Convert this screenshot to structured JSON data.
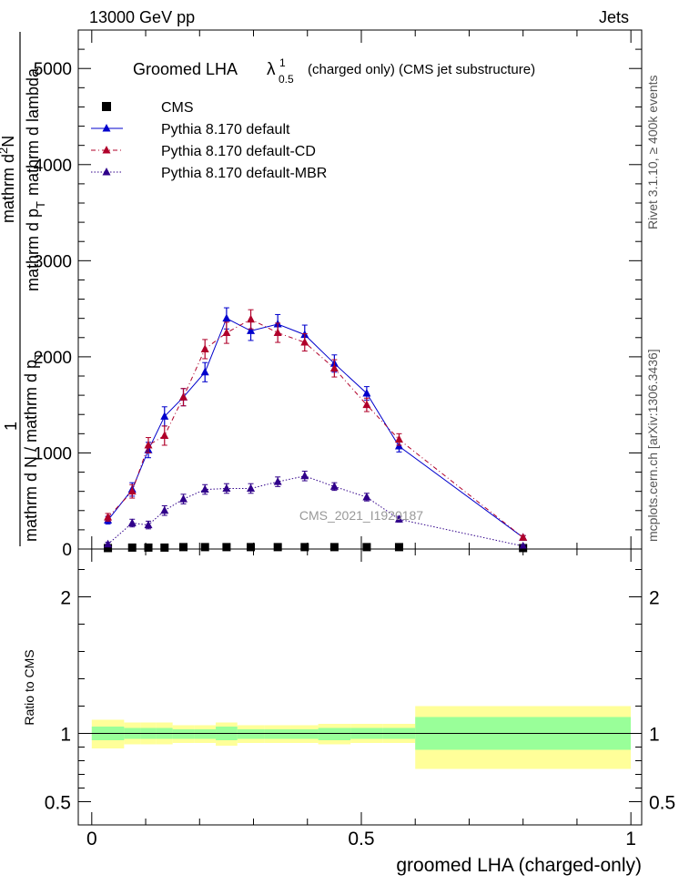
{
  "header": {
    "left": "13000 GeV pp",
    "right": "Jets"
  },
  "side_labels": {
    "rivet": "Rivet 3.1.10, ≥ 400k events",
    "mcplots": "mcplots.cern.ch [arXiv:1306.3436]"
  },
  "main_title": {
    "prefix": "Groomed LHA",
    "lambda": "λ",
    "sup": "1",
    "sub": "0.5",
    "suffix": "(charged only) (CMS jet substructure)"
  },
  "y_label": {
    "one": "1",
    "denominator": "mathrm d N / mathrm d p",
    "denominator_sub": "T",
    "numerator_a": "mathrm d",
    "numerator_sup": "2",
    "numerator_b": "N",
    "numerator_c": "mathrm d p",
    "numerator_sub": "T",
    "numerator_d": "mathrm d lambda"
  },
  "watermark": "CMS_2021_I1920187",
  "ratio_ylabel": "Ratio to CMS",
  "xlabel": "groomed LHA (charged-only)",
  "colors": {
    "cms": "#000000",
    "default": "#0000cc",
    "cd": "#b0002a",
    "mbr": "#30008a",
    "band_inner": "#99ff99",
    "band_outer": "#ffff99"
  },
  "legend": [
    {
      "label": "CMS",
      "marker": "square",
      "style": "none"
    },
    {
      "label": "Pythia 8.170 default",
      "marker": "triangle",
      "style": "solid"
    },
    {
      "label": "Pythia 8.170 default-CD",
      "marker": "triangle",
      "style": "dashdot"
    },
    {
      "label": "Pythia 8.170 default-MBR",
      "marker": "triangle",
      "style": "dotted"
    }
  ],
  "chart_data": {
    "type": "line",
    "main": {
      "xlim": [
        -0.025,
        1.02
      ],
      "ylim": [
        0,
        5400
      ],
      "xticks_labels": [
        "0",
        "0.5",
        "1"
      ],
      "yticks": [
        0,
        1000,
        2000,
        3000,
        4000,
        5000
      ],
      "ytick_labels": [
        "0",
        "1000",
        "2000",
        "3000",
        "4000",
        "5000"
      ]
    },
    "bin_edges": [
      0.0,
      0.06,
      0.09,
      0.12,
      0.15,
      0.19,
      0.23,
      0.27,
      0.32,
      0.37,
      0.42,
      0.48,
      0.54,
      0.6,
      1.0
    ],
    "x": [
      0.03,
      0.075,
      0.105,
      0.135,
      0.17,
      0.21,
      0.25,
      0.295,
      0.345,
      0.395,
      0.45,
      0.51,
      0.57,
      0.8
    ],
    "series": [
      {
        "name": "CMS",
        "key": "cms",
        "values": [
          10,
          15,
          15,
          15,
          20,
          20,
          20,
          20,
          20,
          20,
          20,
          20,
          20,
          10
        ]
      },
      {
        "name": "Pythia 8.170 default",
        "key": "default",
        "values": [
          300,
          620,
          1030,
          1380,
          1580,
          1840,
          2400,
          2270,
          2340,
          2230,
          1930,
          1620,
          1070,
          120
        ],
        "errors": [
          40,
          70,
          80,
          100,
          90,
          100,
          110,
          100,
          100,
          100,
          90,
          70,
          60,
          20
        ]
      },
      {
        "name": "Pythia 8.170 default-CD",
        "key": "cd",
        "values": [
          330,
          600,
          1080,
          1180,
          1580,
          2080,
          2250,
          2390,
          2250,
          2150,
          1880,
          1500,
          1140,
          120
        ],
        "errors": [
          40,
          70,
          80,
          100,
          90,
          100,
          110,
          100,
          100,
          90,
          90,
          70,
          60,
          20
        ]
      },
      {
        "name": "Pythia 8.170 default-MBR",
        "key": "mbr",
        "values": [
          50,
          270,
          250,
          400,
          520,
          620,
          630,
          630,
          700,
          760,
          650,
          540,
          310,
          30
        ],
        "errors": [
          20,
          40,
          40,
          50,
          50,
          50,
          50,
          50,
          50,
          50,
          40,
          40,
          30,
          10
        ]
      }
    ],
    "ratio": {
      "ylim": [
        0.33,
        2.35
      ],
      "ytick_labels": [
        "0.5",
        "1",
        "2"
      ],
      "yticks": [
        0.5,
        1,
        2
      ],
      "inner": [
        [
          0.95,
          1.05
        ],
        [
          0.96,
          1.04
        ],
        [
          0.96,
          1.04
        ],
        [
          0.96,
          1.04
        ],
        [
          0.96,
          1.03
        ],
        [
          0.96,
          1.03
        ],
        [
          0.95,
          1.05
        ],
        [
          0.96,
          1.03
        ],
        [
          0.96,
          1.03
        ],
        [
          0.96,
          1.03
        ],
        [
          0.95,
          1.04
        ],
        [
          0.96,
          1.04
        ],
        [
          0.96,
          1.04
        ],
        [
          0.88,
          1.12
        ]
      ],
      "outer": [
        [
          0.89,
          1.1
        ],
        [
          0.92,
          1.08
        ],
        [
          0.92,
          1.08
        ],
        [
          0.92,
          1.08
        ],
        [
          0.93,
          1.06
        ],
        [
          0.93,
          1.06
        ],
        [
          0.91,
          1.08
        ],
        [
          0.93,
          1.06
        ],
        [
          0.93,
          1.06
        ],
        [
          0.93,
          1.06
        ],
        [
          0.92,
          1.07
        ],
        [
          0.93,
          1.07
        ],
        [
          0.93,
          1.07
        ],
        [
          0.74,
          1.2
        ]
      ]
    }
  }
}
